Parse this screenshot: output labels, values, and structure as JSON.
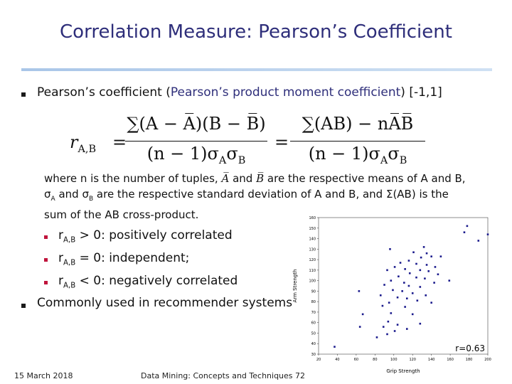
{
  "title": "Correlation Measure: Pearson’s Coefficient",
  "bullet1": {
    "before": "Pearson’s coefficient (",
    "link": "Pearson’s product moment coefficient",
    "after": ") [-1,1]"
  },
  "formula": {
    "lhs": "r",
    "lhs_sub": "A,B",
    "eq": "=",
    "num1": "∑(A − A̅)(B − B̅)",
    "num2": "∑(AB) − nA̅B̅",
    "den": {
      "pre": "(n − 1)σ",
      "sub1": "A",
      "mid": "σ",
      "sub2": "B"
    }
  },
  "where": {
    "p1": "where n is the number of tuples,",
    "a": "A̅",
    "p2": "and",
    "b": "B̅",
    "p3": "are the respective means of A and B, σ",
    "s1": "A",
    "p4": " and σ",
    "s2": "B",
    "p5": " are the respective standard deviation of A and B, and Σ(AB) is the sum of the AB cross-product."
  },
  "sub_bullets": [
    {
      "r": "r",
      "sub": "A,B",
      "text": " > 0: positively correlated"
    },
    {
      "r": "r",
      "sub": "A,B",
      "text": " = 0: independent;"
    },
    {
      "r": "r",
      "sub": "A,B",
      "text": " < 0: negatively correlated"
    }
  ],
  "bullet2": "Commonly used in recommender systems",
  "footer": {
    "date": "15 March 2018",
    "course": "Data Mining: Concepts and Techniques",
    "page": "72"
  },
  "chart_data": {
    "type": "scatter",
    "xlabel": "Grip Strength",
    "ylabel": "Arm Strength",
    "annotation": "r=0.63",
    "color": "#1a1a8c",
    "xlim": [
      20,
      200
    ],
    "ylim": [
      30,
      160
    ],
    "xticks": [
      20,
      40,
      60,
      80,
      100,
      120,
      140,
      160,
      180,
      200
    ],
    "yticks": [
      30,
      40,
      50,
      60,
      70,
      80,
      90,
      100,
      110,
      120,
      130,
      140,
      150,
      160
    ],
    "x": [
      178,
      175,
      200,
      190,
      96,
      132,
      121,
      135,
      140,
      129,
      116,
      107,
      124,
      135,
      144,
      101,
      112,
      128,
      137,
      93,
      117,
      147,
      105,
      124,
      133,
      97,
      111,
      143,
      90,
      116,
      128,
      63,
      99,
      109,
      120,
      134,
      86,
      104,
      114,
      125,
      95,
      140,
      88,
      112,
      67,
      97,
      120,
      94,
      104,
      89,
      64,
      114,
      101,
      93,
      82,
      37,
      128,
      150,
      159
    ],
    "y": [
      152,
      146,
      144,
      138,
      130,
      132,
      127,
      126,
      123,
      122,
      119,
      117,
      116,
      115,
      113,
      113,
      111,
      110,
      109,
      110,
      107,
      106,
      104,
      103,
      102,
      100,
      98,
      98,
      96,
      95,
      94,
      90,
      91,
      90,
      88,
      86,
      86,
      84,
      83,
      81,
      79,
      79,
      76,
      75,
      68,
      69,
      68,
      61,
      58,
      56,
      56,
      54,
      52,
      49,
      46,
      37,
      59,
      123,
      100
    ]
  }
}
